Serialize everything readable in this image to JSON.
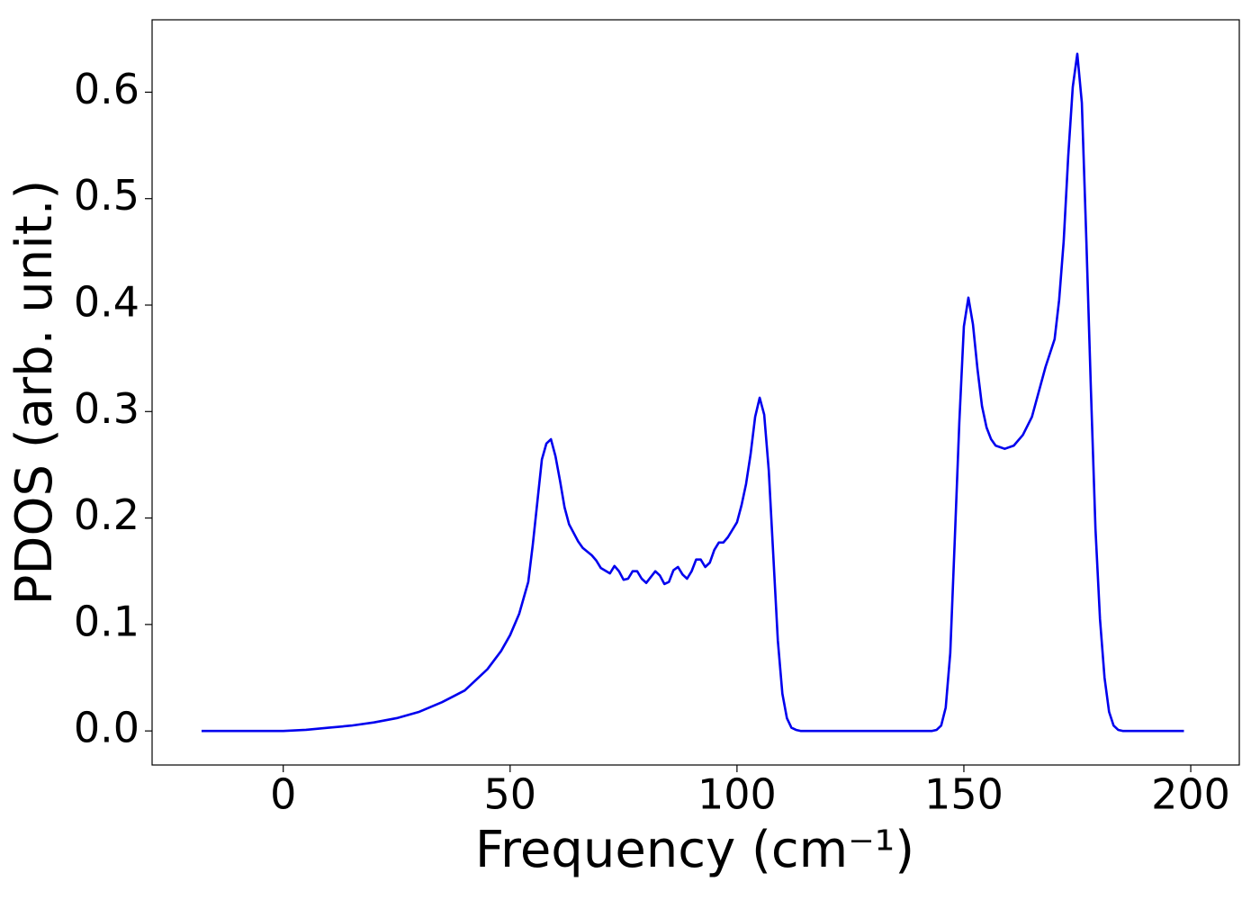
{
  "chart_data": {
    "type": "line",
    "xlabel": "Frequency (cm⁻¹)",
    "ylabel": "PDOS (arb. unit.)",
    "color": "#0000ee",
    "x": [
      -18,
      0,
      5,
      10,
      15,
      20,
      25,
      30,
      35,
      40,
      45,
      48,
      50,
      52,
      53,
      54,
      55,
      56,
      57,
      58,
      59,
      60,
      61,
      62,
      63,
      65,
      66,
      68,
      69,
      70,
      72,
      73,
      74,
      75,
      76,
      77,
      78,
      79,
      80,
      82,
      83,
      84,
      85,
      86,
      87,
      88,
      89,
      90,
      91,
      92,
      93,
      94,
      95,
      96,
      97,
      98,
      100,
      101,
      102,
      103,
      104,
      105,
      106,
      107,
      108,
      109,
      110,
      111,
      112,
      113,
      114,
      115,
      118,
      143,
      144,
      145,
      146,
      147,
      148,
      149,
      150,
      151,
      152,
      153,
      154,
      155,
      156,
      157,
      159,
      161,
      163,
      165,
      168,
      170,
      171,
      172,
      173,
      174,
      175,
      176,
      177,
      178,
      179,
      180,
      181,
      182,
      183,
      184,
      185,
      187,
      198.5
    ],
    "values": [
      0,
      0,
      0.001,
      0.003,
      0.005,
      0.008,
      0.012,
      0.018,
      0.027,
      0.038,
      0.058,
      0.075,
      0.09,
      0.11,
      0.125,
      0.14,
      0.175,
      0.215,
      0.255,
      0.27,
      0.274,
      0.258,
      0.235,
      0.21,
      0.194,
      0.178,
      0.172,
      0.165,
      0.16,
      0.153,
      0.148,
      0.155,
      0.15,
      0.142,
      0.143,
      0.15,
      0.15,
      0.143,
      0.139,
      0.15,
      0.146,
      0.138,
      0.14,
      0.151,
      0.154,
      0.147,
      0.143,
      0.15,
      0.161,
      0.161,
      0.154,
      0.158,
      0.17,
      0.177,
      0.177,
      0.182,
      0.196,
      0.212,
      0.232,
      0.26,
      0.295,
      0.313,
      0.297,
      0.245,
      0.165,
      0.085,
      0.035,
      0.012,
      0.003,
      0.001,
      0,
      0,
      0,
      0,
      0.001,
      0.005,
      0.022,
      0.073,
      0.18,
      0.29,
      0.38,
      0.407,
      0.382,
      0.34,
      0.305,
      0.285,
      0.274,
      0.268,
      0.265,
      0.268,
      0.278,
      0.295,
      0.342,
      0.368,
      0.405,
      0.46,
      0.54,
      0.605,
      0.636,
      0.59,
      0.46,
      0.32,
      0.19,
      0.105,
      0.05,
      0.018,
      0.005,
      0.001,
      0,
      0,
      0
    ],
    "xlim": [
      -28.9,
      210.7
    ],
    "ylim": [
      -0.032,
      0.668
    ],
    "xticks": [
      0,
      50,
      100,
      150,
      200
    ],
    "yticks": [
      {
        "value": 0,
        "label": "0.0"
      },
      0.1,
      0.2,
      0.3,
      0.4,
      0.5,
      0.6
    ]
  }
}
